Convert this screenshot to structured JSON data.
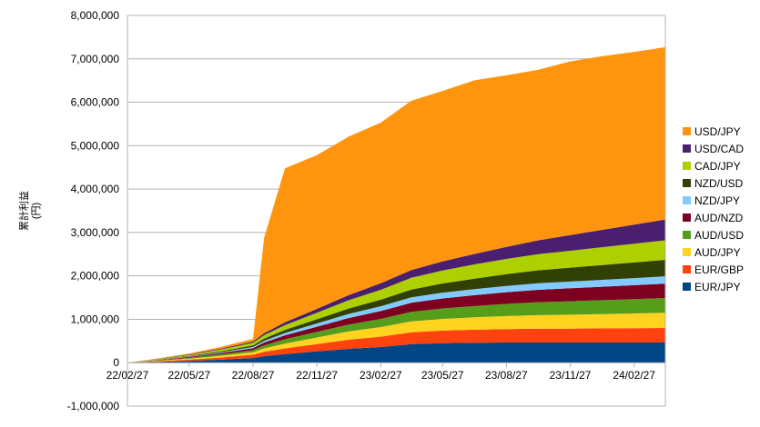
{
  "chart_data": {
    "type": "area",
    "stacked": true,
    "ylabel": "累計利益\n(円)",
    "ylim": [
      -1000000,
      8000000
    ],
    "yticks": [
      -1000000,
      0,
      1000000,
      2000000,
      3000000,
      4000000,
      5000000,
      6000000,
      7000000,
      8000000
    ],
    "ytick_labels": [
      "-1,000,000",
      "0",
      "1,000,000",
      "2,000,000",
      "3,000,000",
      "4,000,000",
      "5,000,000",
      "6,000,000",
      "7,000,000",
      "8,000,000"
    ],
    "xtick_labels": [
      "22/02/27",
      "22/05/27",
      "22/08/27",
      "22/11/27",
      "23/02/27",
      "23/05/27",
      "23/08/27",
      "23/11/27",
      "24/02/27"
    ],
    "grid": true,
    "legend_position": "right",
    "x": [
      "22/02/27",
      "22/04/12",
      "22/05/27",
      "22/07/12",
      "22/08/27",
      "22/09/12",
      "22/10/12",
      "22/11/27",
      "23/01/12",
      "23/02/27",
      "23/04/12",
      "23/05/27",
      "23/07/12",
      "23/08/27",
      "23/10/12",
      "23/11/27",
      "24/01/12",
      "24/02/27",
      "24/04/12"
    ],
    "series": [
      {
        "name": "EUR/JPY",
        "color": "#004586",
        "values": [
          0,
          20000,
          40000,
          70000,
          110000,
          150000,
          200000,
          260000,
          320000,
          360000,
          430000,
          450000,
          460000,
          465000,
          465000,
          465000,
          465000,
          465000,
          465000
        ]
      },
      {
        "name": "EUR/GBP",
        "color": "#ff420e",
        "values": [
          0,
          15000,
          30000,
          50000,
          75000,
          100000,
          130000,
          170000,
          210000,
          240000,
          270000,
          290000,
          300000,
          310000,
          320000,
          320000,
          325000,
          330000,
          335000
        ]
      },
      {
        "name": "AUD/JPY",
        "color": "#ffd320",
        "values": [
          0,
          10000,
          25000,
          40000,
          55000,
          80000,
          110000,
          150000,
          190000,
          220000,
          250000,
          270000,
          285000,
          300000,
          310000,
          320000,
          330000,
          340000,
          350000
        ]
      },
      {
        "name": "AUD/USD",
        "color": "#579d1c",
        "values": [
          0,
          10000,
          20000,
          35000,
          50000,
          70000,
          100000,
          130000,
          160000,
          190000,
          220000,
          240000,
          260000,
          280000,
          300000,
          310000,
          320000,
          330000,
          340000
        ]
      },
      {
        "name": "AUD/NZD",
        "color": "#7e0021",
        "values": [
          0,
          8000,
          18000,
          30000,
          45000,
          65000,
          90000,
          120000,
          150000,
          180000,
          210000,
          230000,
          250000,
          270000,
          285000,
          300000,
          310000,
          320000,
          330000
        ]
      },
      {
        "name": "NZD/JPY",
        "color": "#83caff",
        "values": [
          0,
          5000,
          10000,
          18000,
          28000,
          40000,
          55000,
          75000,
          95000,
          110000,
          125000,
          135000,
          140000,
          145000,
          150000,
          155000,
          160000,
          165000,
          170000
        ]
      },
      {
        "name": "NZD/USD",
        "color": "#314004",
        "values": [
          0,
          5000,
          12000,
          22000,
          35000,
          50000,
          70000,
          95000,
          125000,
          150000,
          180000,
          210000,
          240000,
          270000,
          300000,
          320000,
          340000,
          360000,
          380000
        ]
      },
      {
        "name": "CAD/JPY",
        "color": "#aecf00",
        "values": [
          0,
          10000,
          25000,
          40000,
          60000,
          80000,
          110000,
          150000,
          190000,
          230000,
          270000,
          300000,
          330000,
          350000,
          370000,
          390000,
          410000,
          430000,
          450000
        ]
      },
      {
        "name": "USD/CAD",
        "color": "#4b1f6f",
        "values": [
          0,
          5000,
          12000,
          20000,
          30000,
          45000,
          65000,
          90000,
          120000,
          150000,
          180000,
          210000,
          240000,
          280000,
          320000,
          360000,
          400000,
          440000,
          480000
        ]
      },
      {
        "name": "USD/JPY",
        "color": "#ff950e",
        "values": [
          0,
          10000,
          20000,
          40000,
          60000,
          2200000,
          3550000,
          3540000,
          3650000,
          3700000,
          3900000,
          3925000,
          4000000,
          3950000,
          3930000,
          4000000,
          4000000,
          3980000,
          3970000
        ]
      }
    ]
  }
}
